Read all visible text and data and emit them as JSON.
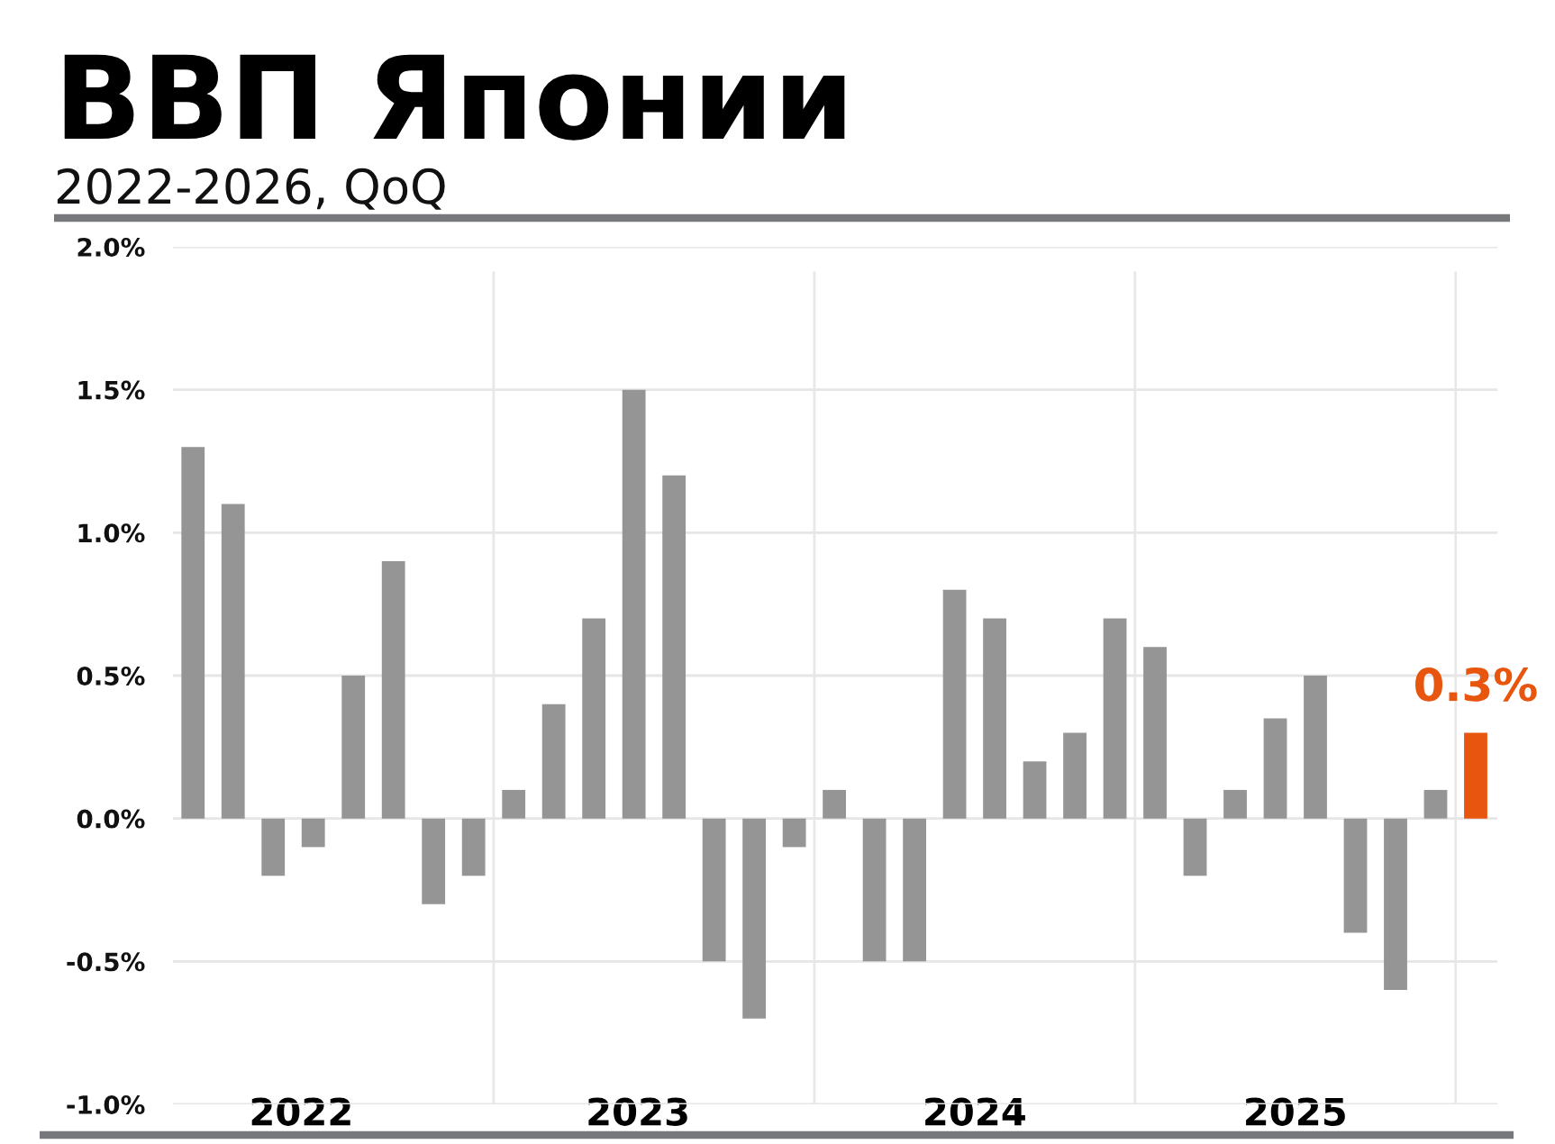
{
  "chart_data": {
    "type": "bar",
    "title": "ВВП Японии",
    "subtitle": "2022-2026, QoQ",
    "x": [
      2022.0625,
      2022.1875,
      2022.3125,
      2022.4375,
      2022.5625,
      2022.6875,
      2022.8125,
      2022.9375,
      2023.0625,
      2023.1875,
      2023.3125,
      2023.4375,
      2023.5625,
      2023.6875,
      2023.8125,
      2023.9375,
      2024.0625,
      2024.1875,
      2024.3125,
      2024.4375,
      2024.5625,
      2024.6875,
      2024.8125,
      2024.9375,
      2025.0625,
      2025.1875,
      2025.3125,
      2025.4375,
      2025.5625,
      2025.6875,
      2025.8125,
      2025.9375,
      2026.0625
    ],
    "values": [
      1.3,
      1.1,
      -0.2,
      -0.1,
      0.5,
      0.9,
      -0.3,
      -0.2,
      0.1,
      0.4,
      0.7,
      1.5,
      1.2,
      -0.5,
      -0.7,
      -0.1,
      0.1,
      -0.5,
      -0.5,
      0.8,
      0.7,
      0.2,
      0.3,
      0.7,
      0.6,
      -0.2,
      0.1,
      0.35,
      0.5,
      -0.4,
      -0.6,
      0.1,
      0.3
    ],
    "colors": [
      "#959595",
      "#959595",
      "#959595",
      "#959595",
      "#959595",
      "#959595",
      "#959595",
      "#959595",
      "#959595",
      "#959595",
      "#959595",
      "#959595",
      "#959595",
      "#959595",
      "#959595",
      "#959595",
      "#959595",
      "#959595",
      "#959595",
      "#959595",
      "#959595",
      "#959595",
      "#959595",
      "#959595",
      "#959595",
      "#959595",
      "#959595",
      "#959595",
      "#959595",
      "#959595",
      "#959595",
      "#959595",
      "#e8550f"
    ],
    "value_labels": [
      null,
      null,
      null,
      null,
      null,
      null,
      null,
      null,
      null,
      null,
      null,
      null,
      null,
      null,
      null,
      null,
      null,
      null,
      null,
      null,
      null,
      null,
      null,
      null,
      null,
      null,
      null,
      null,
      null,
      null,
      null,
      null,
      "0.3%"
    ],
    "xlim": [
      2022.0,
      2026.13
    ],
    "xticks": [
      {
        "value": 2022.4,
        "label": "2022"
      },
      {
        "value": 2023.45,
        "label": "2023"
      },
      {
        "value": 2024.5,
        "label": "2024"
      },
      {
        "value": 2025.5,
        "label": "2025"
      }
    ],
    "ylim": [
      -1.0,
      2.0
    ],
    "yticks": [
      {
        "value": -1.0,
        "label": "-1.0%"
      },
      {
        "value": -0.5,
        "label": "-0.5%"
      },
      {
        "value": 0.0,
        "label": "0.0%"
      },
      {
        "value": 0.5,
        "label": "0.5%"
      },
      {
        "value": 1.0,
        "label": "1.0%"
      },
      {
        "value": 1.5,
        "label": "1.5%"
      },
      {
        "value": 2.0,
        "label": "2.0%"
      }
    ],
    "grid": "y",
    "ref_lines": [
      {
        "axis": "x",
        "value": 2023,
        "color": "#e8e8e8"
      },
      {
        "axis": "x",
        "value": 2024,
        "color": "#e8e8e8"
      },
      {
        "axis": "x",
        "value": 2025,
        "color": "#e8e8e8"
      },
      {
        "axis": "x",
        "value": 2026,
        "color": "#e8e8e8"
      }
    ]
  }
}
